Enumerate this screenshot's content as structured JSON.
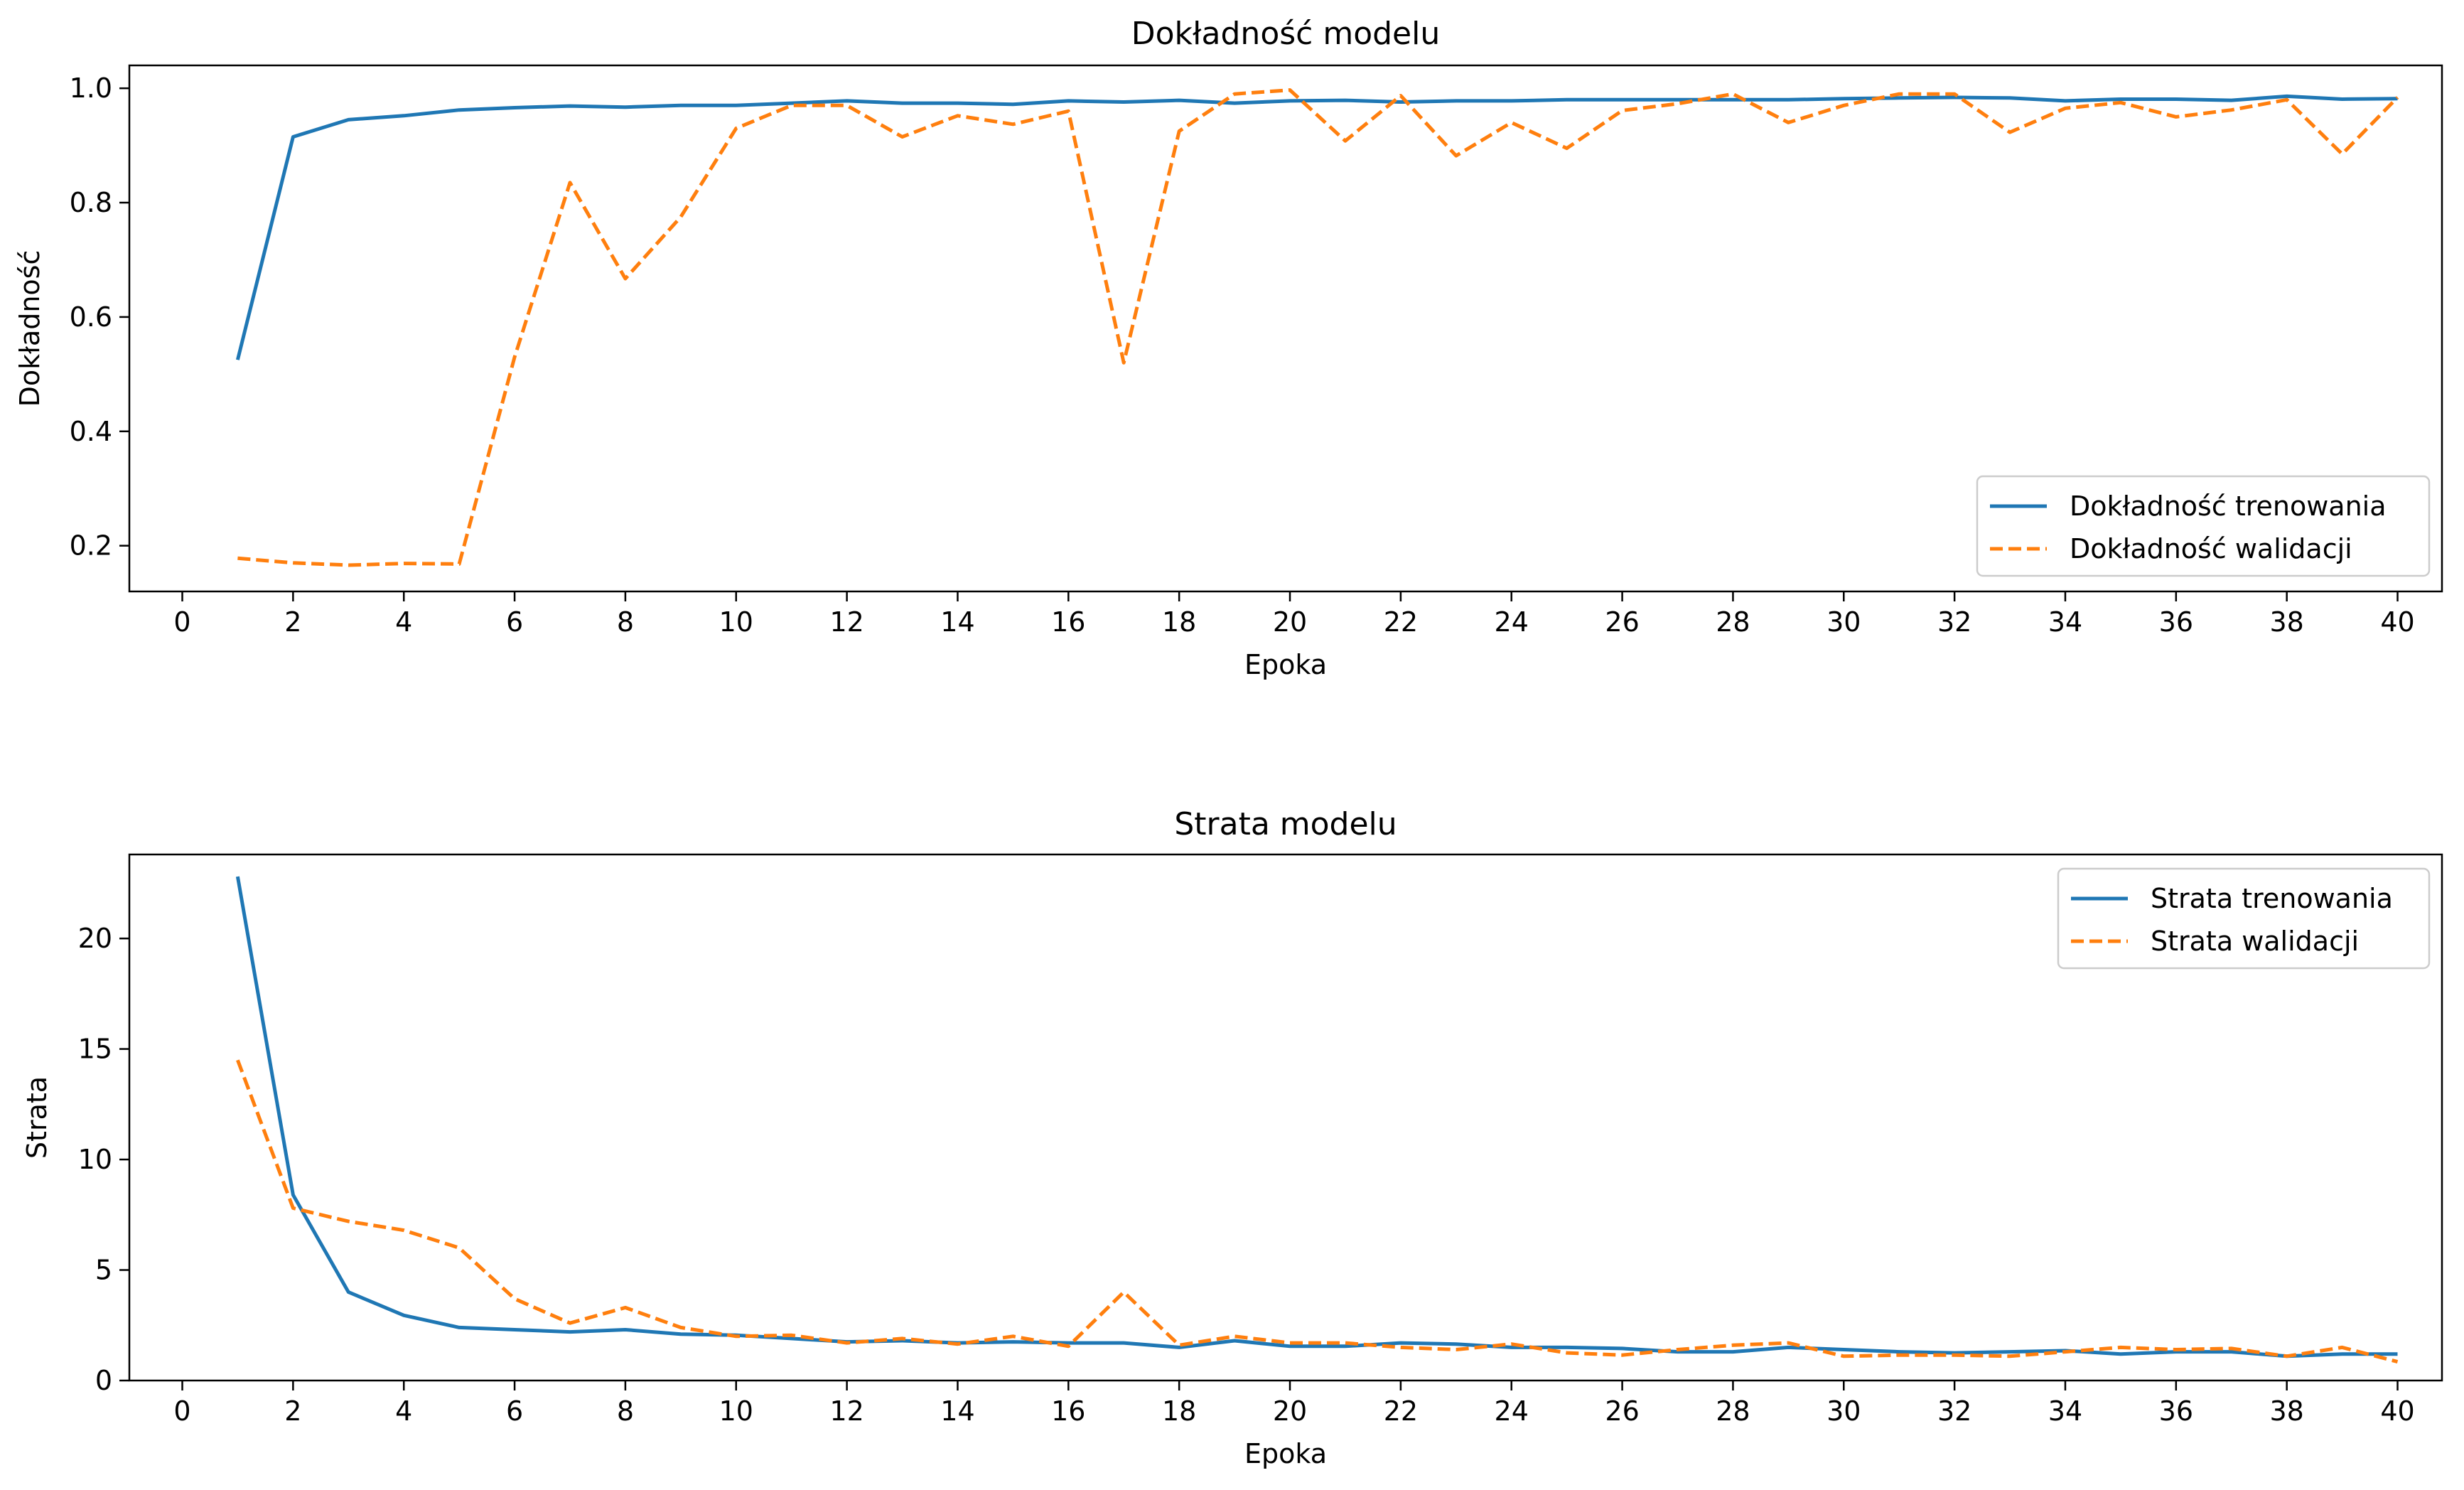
{
  "chart_data": [
    {
      "type": "line",
      "title": "Dokładność modelu",
      "xlabel": "Epoka",
      "ylabel": "Dokładność",
      "xlim": [
        0,
        40
      ],
      "ylim": [
        0.12,
        1.04
      ],
      "xticks": [
        0,
        2,
        4,
        6,
        8,
        10,
        12,
        14,
        16,
        18,
        20,
        22,
        24,
        26,
        28,
        30,
        32,
        34,
        36,
        38,
        40
      ],
      "yticks": [
        0.2,
        0.4,
        0.6,
        0.8,
        1.0
      ],
      "ytick_labels": [
        "0.2",
        "0.4",
        "0.6",
        "0.8",
        "1.0"
      ],
      "grid": false,
      "legend_position": "lower-right",
      "x": [
        1,
        2,
        3,
        4,
        5,
        6,
        7,
        8,
        9,
        10,
        11,
        12,
        13,
        14,
        15,
        16,
        17,
        18,
        19,
        20,
        21,
        22,
        23,
        24,
        25,
        26,
        27,
        28,
        29,
        30,
        31,
        32,
        33,
        34,
        35,
        36,
        37,
        38,
        39,
        40
      ],
      "series": [
        {
          "name": "Dokładność trenowania",
          "color": "#1f77b4",
          "style": "solid",
          "values": [
            0.525,
            0.915,
            0.945,
            0.952,
            0.962,
            0.966,
            0.969,
            0.967,
            0.97,
            0.97,
            0.974,
            0.978,
            0.974,
            0.974,
            0.972,
            0.978,
            0.976,
            0.979,
            0.974,
            0.978,
            0.979,
            0.976,
            0.978,
            0.978,
            0.98,
            0.98,
            0.98,
            0.98,
            0.98,
            0.982,
            0.983,
            0.984,
            0.983,
            0.978,
            0.981,
            0.981,
            0.979,
            0.986,
            0.981,
            0.982
          ]
        },
        {
          "name": "Dokładność walidacji",
          "color": "#ff7f0e",
          "style": "dashed",
          "values": [
            0.178,
            0.17,
            0.166,
            0.169,
            0.168,
            0.53,
            0.835,
            0.667,
            0.775,
            0.93,
            0.97,
            0.97,
            0.915,
            0.952,
            0.937,
            0.96,
            0.52,
            0.925,
            0.99,
            0.997,
            0.908,
            0.987,
            0.882,
            0.94,
            0.895,
            0.961,
            0.973,
            0.99,
            0.94,
            0.97,
            0.99,
            0.99,
            0.923,
            0.965,
            0.975,
            0.95,
            0.962,
            0.98,
            0.885,
            0.984
          ]
        }
      ]
    },
    {
      "type": "line",
      "title": "Strata modelu",
      "xlabel": "Epoka",
      "ylabel": "Strata",
      "xlim": [
        0,
        40
      ],
      "ylim": [
        0,
        23.8
      ],
      "xticks": [
        0,
        2,
        4,
        6,
        8,
        10,
        12,
        14,
        16,
        18,
        20,
        22,
        24,
        26,
        28,
        30,
        32,
        34,
        36,
        38,
        40
      ],
      "yticks": [
        0,
        5,
        10,
        15,
        20
      ],
      "ytick_labels": [
        "0",
        "5",
        "10",
        "15",
        "20"
      ],
      "grid": false,
      "legend_position": "upper-right",
      "x": [
        1,
        2,
        3,
        4,
        5,
        6,
        7,
        8,
        9,
        10,
        11,
        12,
        13,
        14,
        15,
        16,
        17,
        18,
        19,
        20,
        21,
        22,
        23,
        24,
        25,
        26,
        27,
        28,
        29,
        30,
        31,
        32,
        33,
        34,
        35,
        36,
        37,
        38,
        39,
        40
      ],
      "series": [
        {
          "name": "Strata trenowania",
          "color": "#1f77b4",
          "style": "solid",
          "values": [
            22.8,
            8.4,
            4.0,
            2.95,
            2.4,
            2.3,
            2.2,
            2.3,
            2.1,
            2.05,
            1.9,
            1.75,
            1.8,
            1.7,
            1.75,
            1.7,
            1.7,
            1.5,
            1.8,
            1.55,
            1.55,
            1.7,
            1.65,
            1.5,
            1.5,
            1.45,
            1.3,
            1.3,
            1.5,
            1.4,
            1.3,
            1.25,
            1.3,
            1.35,
            1.2,
            1.3,
            1.3,
            1.1,
            1.2,
            1.2
          ]
        },
        {
          "name": "Strata walidacji",
          "color": "#ff7f0e",
          "style": "dashed",
          "values": [
            14.5,
            7.8,
            7.2,
            6.8,
            6.0,
            3.7,
            2.6,
            3.3,
            2.4,
            2.0,
            2.05,
            1.7,
            1.9,
            1.65,
            2.0,
            1.55,
            4.0,
            1.6,
            2.0,
            1.7,
            1.7,
            1.5,
            1.4,
            1.65,
            1.25,
            1.15,
            1.4,
            1.6,
            1.7,
            1.1,
            1.15,
            1.15,
            1.1,
            1.3,
            1.5,
            1.4,
            1.45,
            1.1,
            1.5,
            0.85
          ]
        }
      ]
    }
  ]
}
